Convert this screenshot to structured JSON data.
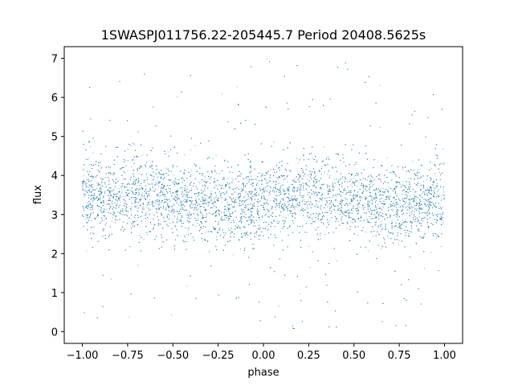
{
  "chart_data": {
    "type": "scatter",
    "title": "1SWASPJ011756.22-205445.7 Period 20408.5625s",
    "xlabel": "phase",
    "ylabel": "flux",
    "xlim": [
      -1.1,
      1.1
    ],
    "ylim": [
      -0.3,
      7.3
    ],
    "x_ticks": [
      -1.0,
      -0.75,
      -0.5,
      -0.25,
      0.0,
      0.25,
      0.5,
      0.75,
      1.0
    ],
    "x_tick_labels": [
      "−1.00",
      "−0.75",
      "−0.50",
      "−0.25",
      "0.00",
      "0.25",
      "0.50",
      "0.75",
      "1.00"
    ],
    "y_ticks": [
      0,
      1,
      2,
      3,
      4,
      5,
      6,
      7
    ],
    "y_tick_labels": [
      "0",
      "1",
      "2",
      "3",
      "4",
      "5",
      "6",
      "7"
    ],
    "grid": false,
    "marker_color": "#1f77b4",
    "series": [
      {
        "x_range": [
          -1.0,
          1.0
        ],
        "mean_flux_profile": {
          "phase": [
            -1.0,
            -0.75,
            -0.5,
            -0.25,
            0.0,
            0.25,
            0.5,
            0.75,
            1.0
          ],
          "flux": [
            3.4,
            3.55,
            3.35,
            3.2,
            3.35,
            3.55,
            3.35,
            3.2,
            3.35
          ]
        },
        "y_range": [
          0.0,
          7.0
        ]
      }
    ]
  }
}
